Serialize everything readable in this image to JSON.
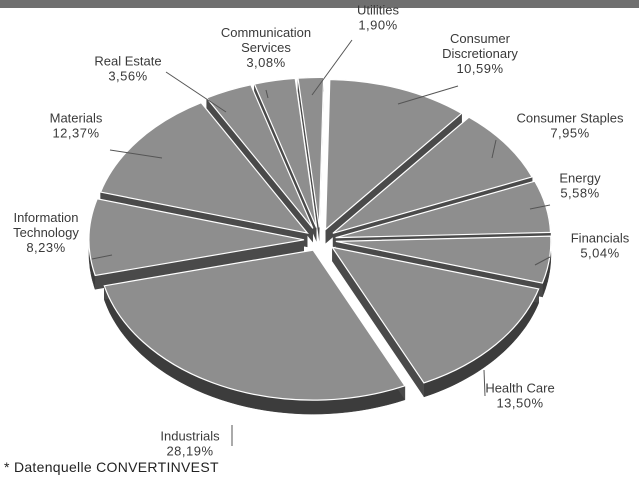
{
  "chart_data": {
    "type": "pie",
    "style": "3d-exploded",
    "slices": [
      {
        "name": "Consumer Discretionary",
        "label_lines": [
          "Consumer",
          "Discretionary"
        ],
        "value": 10.59,
        "value_label": "10,59%"
      },
      {
        "name": "Consumer Staples",
        "label_lines": [
          "Consumer Staples"
        ],
        "value": 7.95,
        "value_label": "7,95%"
      },
      {
        "name": "Energy",
        "label_lines": [
          "Energy"
        ],
        "value": 5.58,
        "value_label": "5,58%"
      },
      {
        "name": "Financials",
        "label_lines": [
          "Financials"
        ],
        "value": 5.04,
        "value_label": "5,04%"
      },
      {
        "name": "Health Care",
        "label_lines": [
          "Health Care"
        ],
        "value": 13.5,
        "value_label": "13,50%"
      },
      {
        "name": "Industrials",
        "label_lines": [
          "Industrials"
        ],
        "value": 28.19,
        "value_label": "28,19%"
      },
      {
        "name": "Information Technology",
        "label_lines": [
          "Information",
          "Technology"
        ],
        "value": 8.23,
        "value_label": "8,23%"
      },
      {
        "name": "Materials",
        "label_lines": [
          "Materials"
        ],
        "value": 12.37,
        "value_label": "12,37%"
      },
      {
        "name": "Real Estate",
        "label_lines": [
          "Real Estate"
        ],
        "value": 3.56,
        "value_label": "3,56%"
      },
      {
        "name": "Communication Services",
        "label_lines": [
          "Communication",
          "Services"
        ],
        "value": 3.08,
        "value_label": "3,08%"
      },
      {
        "name": "Utilities",
        "label_lines": [
          "Utilities"
        ],
        "value": 1.9,
        "value_label": "1,90%"
      }
    ],
    "colors": {
      "face": "#8e8e8e",
      "side": "#3c3c3c",
      "edge": "#ffffff",
      "leader": "#555555",
      "topbar": "#6f6f6f"
    }
  },
  "source_note": "* Datenquelle CONVERTINVEST"
}
